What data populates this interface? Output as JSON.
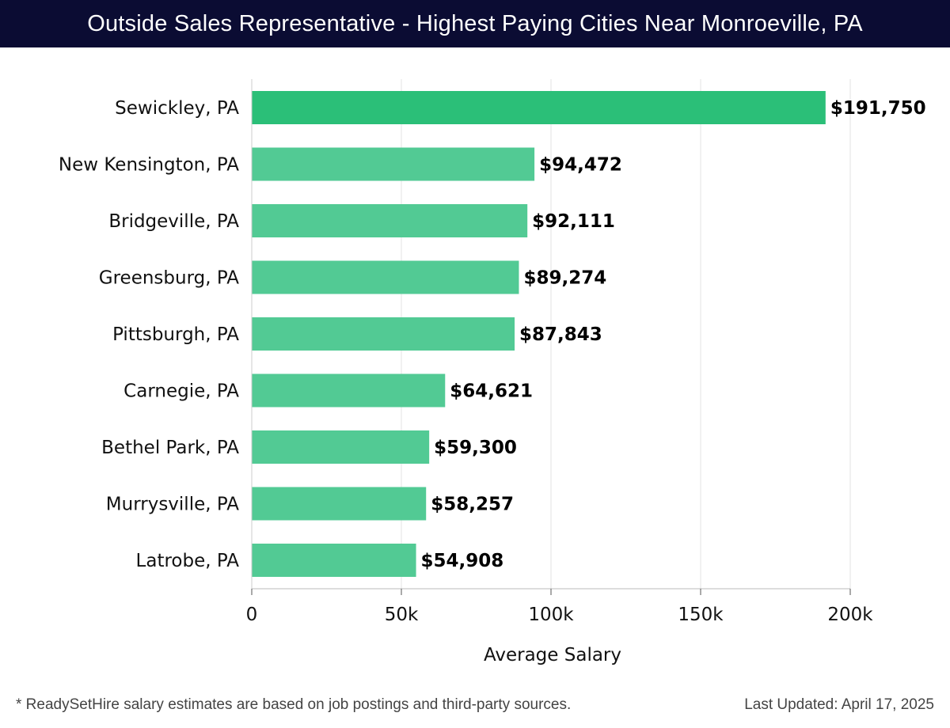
{
  "header": {
    "title": "Outside Sales Representative - Highest Paying Cities Near Monroeville, PA"
  },
  "chart_data": {
    "type": "bar",
    "orientation": "horizontal",
    "categories": [
      "Sewickley, PA",
      "New Kensington, PA",
      "Bridgeville, PA",
      "Greensburg, PA",
      "Pittsburgh, PA",
      "Carnegie, PA",
      "Bethel Park, PA",
      "Murrysville, PA",
      "Latrobe, PA"
    ],
    "values": [
      191750,
      94472,
      92111,
      89274,
      87843,
      64621,
      59300,
      58257,
      54908
    ],
    "value_labels": [
      "$191,750",
      "$94,472",
      "$92,111",
      "$89,274",
      "$87,843",
      "$64,621",
      "$59,300",
      "$58,257",
      "$54,908"
    ],
    "xlabel": "Average Salary",
    "ylabel": "",
    "xlim": [
      0,
      200000
    ],
    "xticks": [
      0,
      50000,
      100000,
      150000,
      200000
    ],
    "xtick_labels": [
      "0",
      "50k",
      "100k",
      "150k",
      "200k"
    ],
    "grid": true,
    "colors": {
      "highlight": "#2bbf78",
      "bar": "#52ca94",
      "grid": "#e3e3e3",
      "title_bg": "#0b0c33"
    }
  },
  "footer": {
    "note": "* ReadySetHire salary estimates are based on job postings and third-party sources.",
    "updated": "Last Updated: April 17, 2025"
  }
}
